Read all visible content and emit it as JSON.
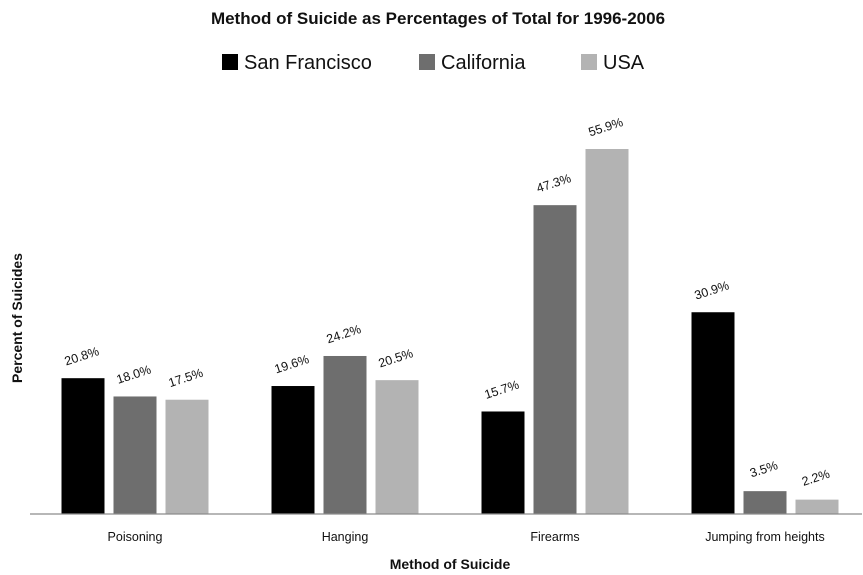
{
  "chart_data": {
    "type": "bar",
    "title": "Method of Suicide as Percentages of Total for 1996-2006",
    "xlabel": "Method of Suicide",
    "ylabel": "Percent of Suicides",
    "categories": [
      "Poisoning",
      "Hanging",
      "Firearms",
      "Jumping from heights"
    ],
    "series": [
      {
        "name": "San Francisco",
        "color": "#000000",
        "values": [
          20.8,
          19.6,
          15.7,
          30.9
        ],
        "labels": [
          "20.8%",
          "19.6%",
          "15.7%",
          "30.9%"
        ]
      },
      {
        "name": "California",
        "color": "#6e6e6e",
        "values": [
          18.0,
          24.2,
          47.3,
          3.5
        ],
        "labels": [
          "18.0%",
          "24.2%",
          "47.3%",
          "3.5%"
        ]
      },
      {
        "name": "USA",
        "color": "#b3b3b3",
        "values": [
          17.5,
          20.5,
          55.9,
          2.2
        ],
        "labels": [
          "17.5%",
          "20.5%",
          "55.9%",
          "2.2%"
        ]
      }
    ],
    "ylim": [
      0,
      56
    ],
    "grid": false,
    "legend_position": "top"
  }
}
